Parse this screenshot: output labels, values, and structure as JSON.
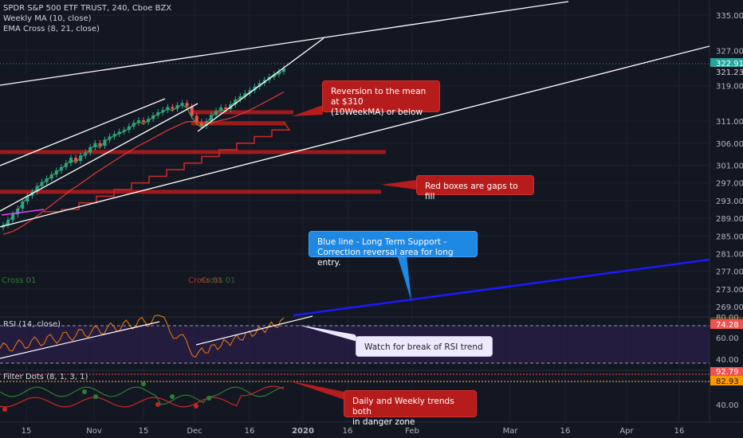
{
  "legend": {
    "title": "SPDR S&P 500 ETF TRUST, 240, Cboe BZX",
    "ma": "Weekly MA (10, close)",
    "ema": "EMA Cross (8, 21, close)",
    "rsi": "RSI (14, close)",
    "filter": "Filter Dots (8, 1, 3, 1)"
  },
  "price_axis": {
    "ticks": [
      "335.00",
      "327.00",
      "319.00",
      "311.00",
      "306.00",
      "301.00",
      "297.00",
      "293.00",
      "289.00",
      "285.00",
      "281.00",
      "277.00",
      "273.00",
      "269.00"
    ],
    "current_price": "322.91",
    "ma_price": "321.23",
    "current_color": "#26a69a"
  },
  "rsi_axis": {
    "ticks": [
      "80.00",
      "60.00",
      "40.00"
    ],
    "current": "74.28"
  },
  "filter_axis": {
    "ticks": [
      "40.00"
    ],
    "value_a": "92.79",
    "value_b": "82.93"
  },
  "time_axis": {
    "labels": [
      "15",
      "Nov",
      "15",
      "Dec",
      "16",
      "2020",
      "16",
      "Feb",
      "Mar",
      "16",
      "Apr",
      "16"
    ]
  },
  "cross_labels": {
    "left": "Cross 01",
    "mid": "Cross 01",
    "mid_overlap": "Cross 01"
  },
  "callouts": {
    "reversion": [
      "Reversion to the mean at $310",
      "(10WeekMA) or below"
    ],
    "gaps": "Red boxes are gaps to fill",
    "support": [
      "Blue line - Long Term Support -",
      "Correction reversal area for long entry."
    ],
    "rsi_trend": "Watch for break of RSI trend",
    "danger": [
      "Daily and Weekly trends both",
      "in danger zone"
    ]
  },
  "colors": {
    "background": "#131722",
    "up": "#26a69a",
    "down": "#ef5350",
    "support_line": "#1a1aff",
    "gap_box": "#b71c1c",
    "trend_line": "#ffffff",
    "ma_line": "#e53935",
    "ema_fast": "#43a047",
    "rsi_line": "#f57c00",
    "rsi_band": "#2a1f4a"
  },
  "chart_data": {
    "type": "candlestick",
    "symbol": "SPDR S&P 500 ETF TRUST",
    "timeframe": "240",
    "price_range": [
      266,
      339
    ],
    "candles_close": [
      287.5,
      288.6,
      289.9,
      291.2,
      292.8,
      294.1,
      295.0,
      296.3,
      297.2,
      298.0,
      298.9,
      299.8,
      300.6,
      301.5,
      302.7,
      302.0,
      303.2,
      303.9,
      305.1,
      306.0,
      305.4,
      306.8,
      307.5,
      308.1,
      308.6,
      309.0,
      309.8,
      310.6,
      311.2,
      310.8,
      311.5,
      312.3,
      313.0,
      313.5,
      314.2,
      313.8,
      314.6,
      315.1,
      314.3,
      312.2,
      310.8,
      309.9,
      311.0,
      312.4,
      313.3,
      314.1,
      313.7,
      314.8,
      315.9,
      316.6,
      317.3,
      318.0,
      318.8,
      319.6,
      320.3,
      321.0,
      321.6,
      322.2,
      322.91
    ],
    "gaps": [
      {
        "level": 295.0
      },
      {
        "level": 304.0
      },
      {
        "level": 310.5
      },
      {
        "level": 313.0
      }
    ],
    "support_line": {
      "from_price": 266.5,
      "to_price": 280.6
    },
    "rsi_current": 74.28,
    "rsi_levels": [
      70,
      30
    ],
    "filter_values": [
      92.79,
      82.93
    ]
  }
}
